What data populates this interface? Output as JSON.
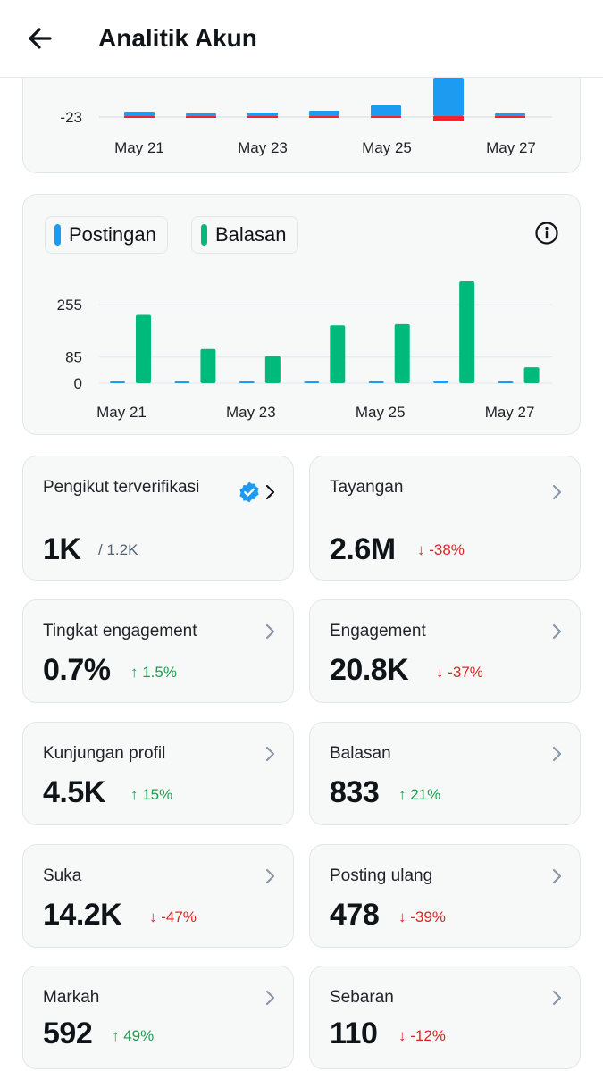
{
  "header": {
    "title": "Analitik Akun"
  },
  "top_chart": {
    "y_tick": "-23",
    "x_labels": [
      "May 21",
      "May 23",
      "May 25",
      "May 27"
    ],
    "colors": {
      "blue": "#1d9bf0",
      "red": "#f4212e"
    }
  },
  "chart_data": {
    "type": "bar",
    "categories": [
      "May 21",
      "May 22",
      "May 23",
      "May 24",
      "May 25",
      "May 26",
      "May 27"
    ],
    "x_tick_labels": [
      "May 21",
      "May 23",
      "May 25",
      "May 27"
    ],
    "series": [
      {
        "name": "Postingan",
        "color": "#1d9bf0",
        "values": [
          4,
          3,
          2,
          5,
          6,
          8,
          1
        ]
      },
      {
        "name": "Balasan",
        "color": "#00ba7c",
        "values": [
          222,
          111,
          88,
          188,
          192,
          331,
          52
        ]
      }
    ],
    "y_ticks": [
      0,
      85,
      255
    ],
    "ylim": [
      0,
      331
    ],
    "legend": "top-left",
    "grid": true
  },
  "metrics": [
    {
      "label": "Pengikut terverifikasi",
      "value": "1K",
      "total": "/ 1.2K",
      "verified": true
    },
    {
      "label": "Tayangan",
      "value": "2.6M",
      "change": "↓ -38%",
      "direction": "down"
    },
    {
      "label": "Tingkat engagement",
      "value": "0.7%",
      "change": "↑ 1.5%",
      "direction": "up"
    },
    {
      "label": "Engagement",
      "value": "20.8K",
      "change": "↓ -37%",
      "direction": "down"
    },
    {
      "label": "Kunjungan profil",
      "value": "4.5K",
      "change": "↑ 15%",
      "direction": "up"
    },
    {
      "label": "Balasan",
      "value": "833",
      "change": "↑ 21%",
      "direction": "up"
    },
    {
      "label": "Suka",
      "value": "14.2K",
      "change": "↓ -47%",
      "direction": "down"
    },
    {
      "label": "Posting ulang",
      "value": "478",
      "change": "↓ -39%",
      "direction": "down"
    },
    {
      "label": "Markah",
      "value": "592",
      "change": "↑ 49%",
      "direction": "up"
    },
    {
      "label": "Sebaran",
      "value": "110",
      "change": "↓ -12%",
      "direction": "down"
    }
  ]
}
